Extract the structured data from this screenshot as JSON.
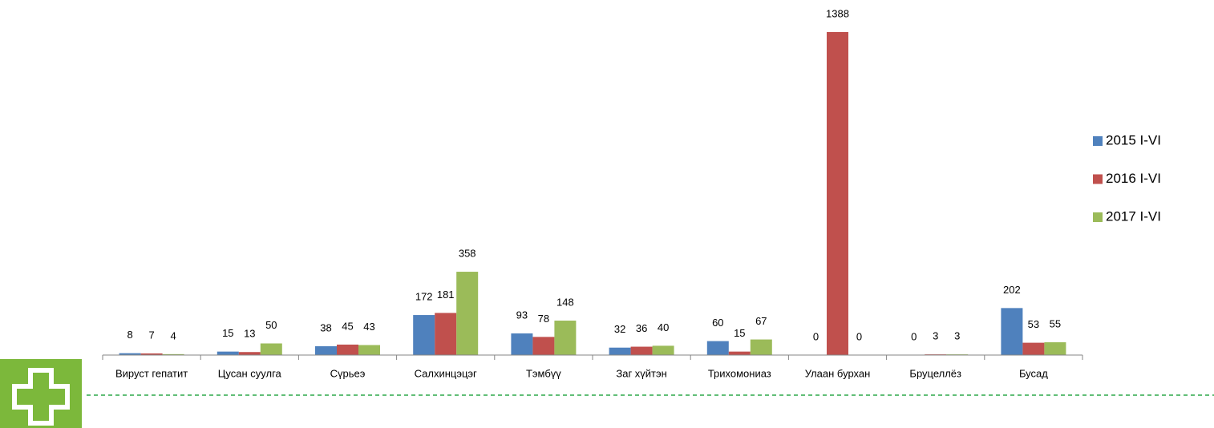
{
  "chart_data": {
    "type": "bar",
    "categories": [
      "Вируст гепатит",
      "Цусан суулга",
      "Сүрьеэ",
      "Салхинцэцэг",
      "Тэмбүү",
      "Заг хүйтэн",
      "Трихомониаз",
      "Улаан бурхан",
      "Бруцеллёз",
      "Бусад"
    ],
    "series": [
      {
        "name": "2015 I-VI",
        "color": "#4f81bd",
        "values": [
          8,
          15,
          38,
          172,
          93,
          32,
          60,
          0,
          0,
          202
        ]
      },
      {
        "name": "2016 I-VI",
        "color": "#c0504d",
        "values": [
          7,
          13,
          45,
          181,
          78,
          36,
          15,
          1388,
          3,
          53
        ]
      },
      {
        "name": "2017 I-VI",
        "color": "#9bbb59",
        "values": [
          4,
          50,
          43,
          358,
          148,
          40,
          67,
          0,
          3,
          55
        ]
      }
    ],
    "ylim": [
      0,
      1400
    ],
    "legend": "right"
  }
}
